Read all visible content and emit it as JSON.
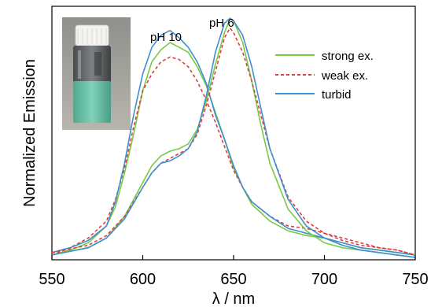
{
  "chart_data": {
    "type": "line",
    "xlabel": "λ / nm",
    "ylabel": "Normalized Emission",
    "xlim": [
      550,
      750
    ],
    "ylim": [
      0,
      1.05
    ],
    "xticks": [
      "550",
      "600",
      "650",
      "700",
      "750"
    ],
    "show_y_ticks": false,
    "grid": false,
    "legend_position": "top-right",
    "annotations": [
      "pH 10",
      "pH 6"
    ],
    "inset": "photo of a vial containing green-turquoise liquid",
    "series": [
      {
        "name": "strong ex.",
        "color": "#7ac943",
        "dash": "solid",
        "x": [
          550,
          560,
          570,
          580,
          585,
          590,
          595,
          600,
          605,
          610,
          615,
          620,
          625,
          630,
          635,
          640,
          645,
          650,
          655,
          660,
          670,
          680,
          690,
          700,
          710,
          720,
          730,
          740,
          750
        ],
        "y": [
          0.02,
          0.04,
          0.07,
          0.14,
          0.22,
          0.36,
          0.52,
          0.7,
          0.82,
          0.87,
          0.9,
          0.88,
          0.86,
          0.8,
          0.72,
          0.61,
          0.5,
          0.38,
          0.3,
          0.23,
          0.16,
          0.12,
          0.1,
          0.09,
          0.07,
          0.05,
          0.04,
          0.03,
          0.02
        ]
      },
      {
        "name": "weak ex.",
        "color": "#e23c3c",
        "dash": "dashed",
        "x": [
          550,
          560,
          570,
          580,
          585,
          590,
          595,
          600,
          605,
          610,
          615,
          620,
          625,
          630,
          635,
          640,
          645,
          650,
          655,
          660,
          670,
          680,
          690,
          700,
          710,
          720,
          730,
          740,
          750
        ],
        "y": [
          0.02,
          0.05,
          0.09,
          0.16,
          0.25,
          0.38,
          0.55,
          0.7,
          0.77,
          0.82,
          0.84,
          0.83,
          0.8,
          0.74,
          0.66,
          0.57,
          0.47,
          0.37,
          0.3,
          0.24,
          0.18,
          0.14,
          0.13,
          0.11,
          0.09,
          0.07,
          0.05,
          0.04,
          0.02
        ]
      },
      {
        "name": "turbid",
        "color": "#3f8fcf",
        "dash": "solid",
        "x": [
          550,
          560,
          570,
          580,
          585,
          590,
          595,
          600,
          605,
          610,
          615,
          620,
          625,
          630,
          635,
          640,
          645,
          650,
          655,
          660,
          670,
          680,
          690,
          700,
          710,
          720,
          730,
          740,
          750
        ],
        "y": [
          0.03,
          0.05,
          0.08,
          0.14,
          0.24,
          0.4,
          0.6,
          0.77,
          0.88,
          0.93,
          0.95,
          0.92,
          0.88,
          0.82,
          0.73,
          0.6,
          0.5,
          0.39,
          0.3,
          0.24,
          0.18,
          0.13,
          0.11,
          0.09,
          0.07,
          0.05,
          0.04,
          0.03,
          0.02
        ]
      },
      {
        "name": "",
        "color": "#7ac943",
        "dash": "solid",
        "x": [
          550,
          570,
          580,
          590,
          600,
          605,
          610,
          615,
          620,
          625,
          630,
          635,
          640,
          645,
          648,
          650,
          655,
          660,
          665,
          670,
          680,
          690,
          700,
          710,
          720,
          730,
          740,
          750
        ],
        "y": [
          0.02,
          0.05,
          0.09,
          0.18,
          0.32,
          0.39,
          0.43,
          0.45,
          0.46,
          0.48,
          0.54,
          0.66,
          0.81,
          0.94,
          1.0,
          0.99,
          0.9,
          0.74,
          0.56,
          0.4,
          0.21,
          0.12,
          0.07,
          0.05,
          0.04,
          0.03,
          0.02,
          0.01
        ]
      },
      {
        "name": "",
        "color": "#e23c3c",
        "dash": "dashed",
        "x": [
          550,
          570,
          580,
          590,
          600,
          605,
          610,
          615,
          620,
          625,
          630,
          635,
          640,
          645,
          648,
          650,
          655,
          660,
          665,
          670,
          680,
          690,
          700,
          710,
          720,
          730,
          740,
          750
        ],
        "y": [
          0.03,
          0.06,
          0.1,
          0.18,
          0.3,
          0.36,
          0.4,
          0.42,
          0.44,
          0.46,
          0.52,
          0.64,
          0.78,
          0.92,
          0.96,
          0.94,
          0.86,
          0.74,
          0.6,
          0.46,
          0.26,
          0.16,
          0.11,
          0.08,
          0.06,
          0.05,
          0.04,
          0.02
        ]
      },
      {
        "name": "",
        "color": "#3f8fcf",
        "dash": "solid",
        "x": [
          550,
          570,
          580,
          590,
          600,
          605,
          610,
          615,
          620,
          625,
          630,
          635,
          640,
          645,
          648,
          650,
          655,
          660,
          665,
          670,
          680,
          690,
          700,
          710,
          720,
          730,
          740,
          750
        ],
        "y": [
          0.02,
          0.05,
          0.09,
          0.17,
          0.3,
          0.36,
          0.4,
          0.41,
          0.43,
          0.46,
          0.53,
          0.68,
          0.86,
          0.98,
          1.0,
          0.99,
          0.93,
          0.8,
          0.63,
          0.46,
          0.25,
          0.14,
          0.09,
          0.06,
          0.04,
          0.03,
          0.02,
          0.01
        ]
      }
    ]
  }
}
